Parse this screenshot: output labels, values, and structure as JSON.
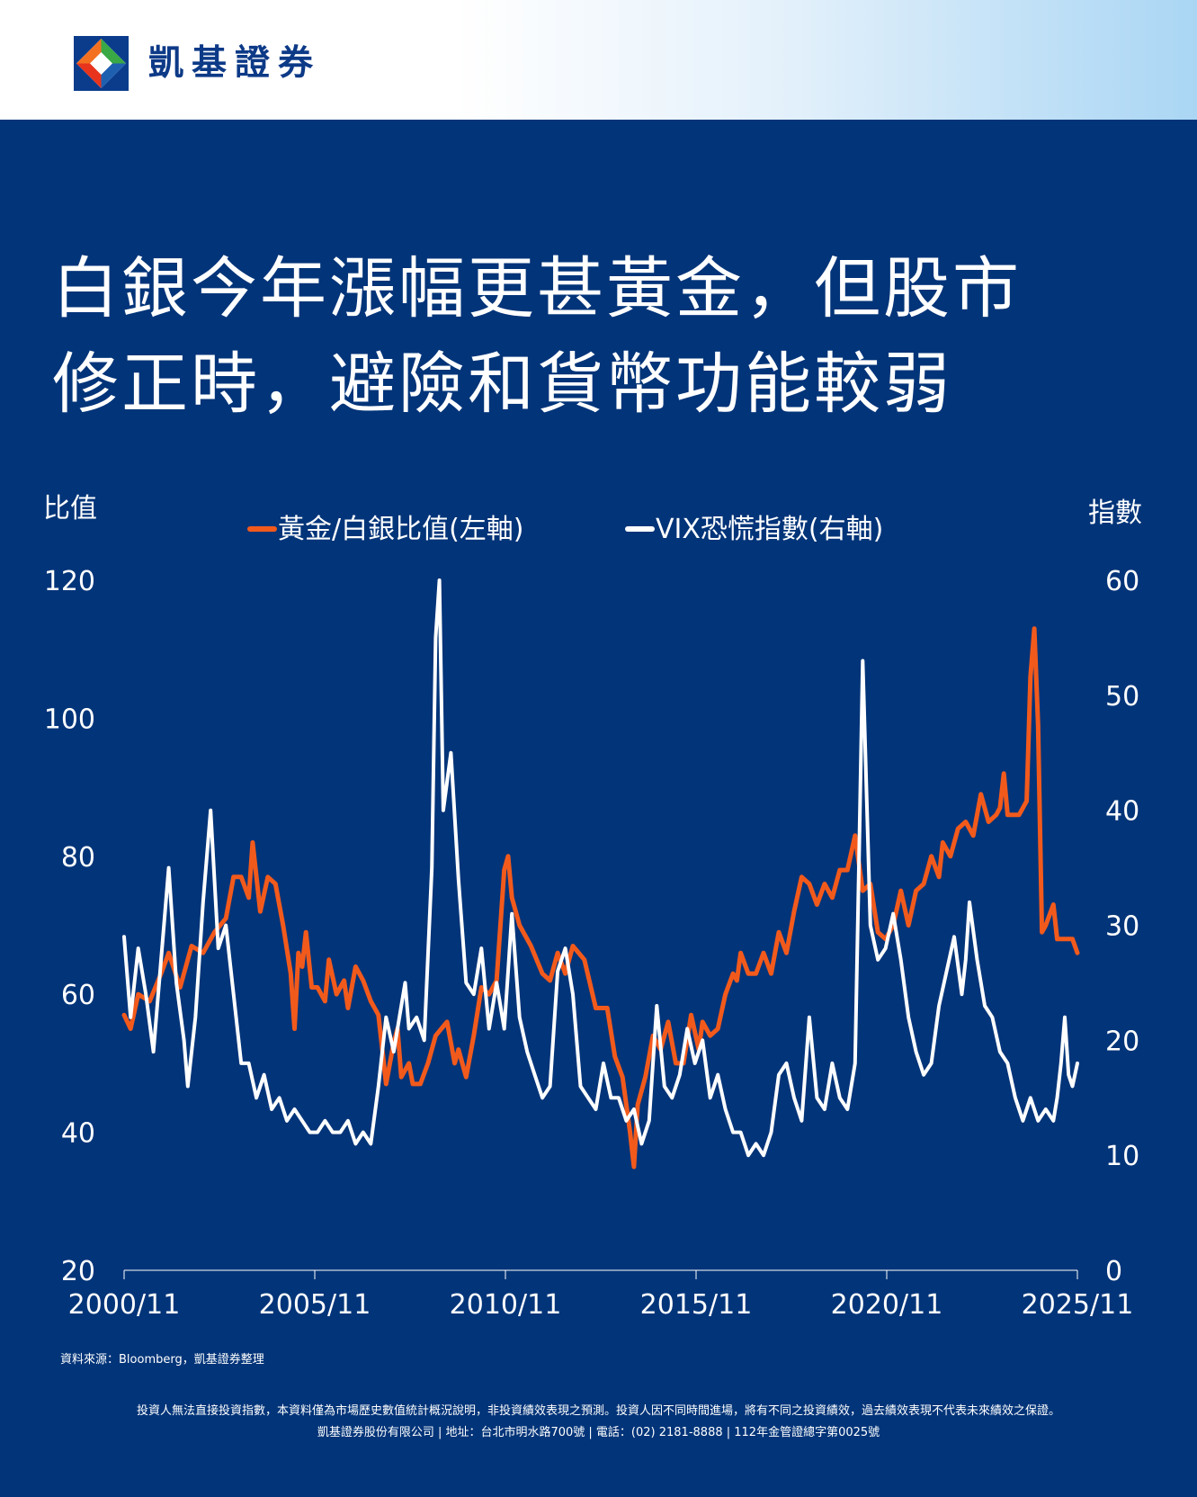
{
  "brand": {
    "name": "凱基證券"
  },
  "title": {
    "line1": "白銀今年漲幅更甚黃金，但股市",
    "line2": "修正時，避險和貨幣功能較弱"
  },
  "chart_data": {
    "type": "line",
    "left_axis": {
      "label": "比值",
      "min": 20,
      "max": 120,
      "ticks": [
        20,
        40,
        60,
        80,
        100,
        120
      ]
    },
    "right_axis": {
      "label": "指數",
      "min": 0,
      "max": 60,
      "ticks": [
        0,
        10,
        20,
        30,
        40,
        50,
        60
      ]
    },
    "x_axis": {
      "min": 2000.83,
      "max": 2025.83,
      "tick_labels": [
        "2000/11",
        "2005/11",
        "2010/11",
        "2015/11",
        "2020/11",
        "2025/11"
      ],
      "tick_values": [
        2000.83,
        2005.83,
        2010.83,
        2015.83,
        2020.83,
        2025.83
      ]
    },
    "grid": false,
    "legend_position": "top",
    "series": [
      {
        "name": "黃金/白銀比值(左軸)",
        "axis": "left",
        "color": "#f25a1c",
        "points": [
          [
            2000.83,
            57
          ],
          [
            2001.0,
            55
          ],
          [
            2001.2,
            60
          ],
          [
            2001.5,
            59
          ],
          [
            2001.8,
            63
          ],
          [
            2002.0,
            66
          ],
          [
            2002.3,
            61
          ],
          [
            2002.6,
            67
          ],
          [
            2002.9,
            66
          ],
          [
            2003.2,
            69
          ],
          [
            2003.5,
            71
          ],
          [
            2003.7,
            77
          ],
          [
            2003.9,
            77
          ],
          [
            2004.1,
            74
          ],
          [
            2004.2,
            82
          ],
          [
            2004.4,
            72
          ],
          [
            2004.6,
            77
          ],
          [
            2004.8,
            76
          ],
          [
            2005.0,
            70
          ],
          [
            2005.2,
            63
          ],
          [
            2005.3,
            55
          ],
          [
            2005.4,
            66
          ],
          [
            2005.5,
            64
          ],
          [
            2005.6,
            69
          ],
          [
            2005.75,
            61
          ],
          [
            2005.9,
            61
          ],
          [
            2006.1,
            59
          ],
          [
            2006.2,
            65
          ],
          [
            2006.4,
            60
          ],
          [
            2006.6,
            62
          ],
          [
            2006.7,
            58
          ],
          [
            2006.9,
            64
          ],
          [
            2007.1,
            62
          ],
          [
            2007.3,
            59
          ],
          [
            2007.5,
            57
          ],
          [
            2007.7,
            47
          ],
          [
            2007.9,
            53
          ],
          [
            2008.0,
            55
          ],
          [
            2008.1,
            48
          ],
          [
            2008.3,
            50
          ],
          [
            2008.4,
            47
          ],
          [
            2008.6,
            47
          ],
          [
            2008.8,
            50
          ],
          [
            2009.0,
            54
          ],
          [
            2009.3,
            56
          ],
          [
            2009.5,
            50
          ],
          [
            2009.6,
            52
          ],
          [
            2009.8,
            48
          ],
          [
            2010.0,
            54
          ],
          [
            2010.2,
            61
          ],
          [
            2010.4,
            60
          ],
          [
            2010.6,
            62
          ],
          [
            2010.8,
            78
          ],
          [
            2010.9,
            80
          ],
          [
            2011.0,
            74
          ],
          [
            2011.2,
            70
          ],
          [
            2011.5,
            67
          ],
          [
            2011.8,
            63
          ],
          [
            2012.0,
            62
          ],
          [
            2012.2,
            66
          ],
          [
            2012.4,
            63
          ],
          [
            2012.6,
            67
          ],
          [
            2012.9,
            65
          ],
          [
            2013.2,
            58
          ],
          [
            2013.5,
            58
          ],
          [
            2013.7,
            51
          ],
          [
            2013.9,
            48
          ],
          [
            2014.1,
            40
          ],
          [
            2014.2,
            35
          ],
          [
            2014.3,
            44
          ],
          [
            2014.5,
            48
          ],
          [
            2014.7,
            54
          ],
          [
            2014.9,
            52
          ],
          [
            2015.1,
            56
          ],
          [
            2015.3,
            50
          ],
          [
            2015.5,
            50
          ],
          [
            2015.7,
            57
          ],
          [
            2015.9,
            52
          ],
          [
            2016.0,
            56
          ],
          [
            2016.2,
            54
          ],
          [
            2016.4,
            55
          ],
          [
            2016.6,
            60
          ],
          [
            2016.8,
            63
          ],
          [
            2016.9,
            62
          ],
          [
            2017.0,
            66
          ],
          [
            2017.2,
            63
          ],
          [
            2017.4,
            63
          ],
          [
            2017.6,
            66
          ],
          [
            2017.8,
            63
          ],
          [
            2018.0,
            69
          ],
          [
            2018.2,
            66
          ],
          [
            2018.4,
            72
          ],
          [
            2018.6,
            77
          ],
          [
            2018.8,
            76
          ],
          [
            2019.0,
            73
          ],
          [
            2019.2,
            76
          ],
          [
            2019.4,
            74
          ],
          [
            2019.6,
            78
          ],
          [
            2019.8,
            78
          ],
          [
            2020.0,
            83
          ],
          [
            2020.2,
            75
          ],
          [
            2020.4,
            76
          ],
          [
            2020.6,
            69
          ],
          [
            2020.8,
            68
          ],
          [
            2021.0,
            70
          ],
          [
            2021.2,
            75
          ],
          [
            2021.4,
            70
          ],
          [
            2021.6,
            75
          ],
          [
            2021.8,
            76
          ],
          [
            2022.0,
            80
          ],
          [
            2022.2,
            77
          ],
          [
            2022.3,
            82
          ],
          [
            2022.5,
            80
          ],
          [
            2022.7,
            84
          ],
          [
            2022.9,
            85
          ],
          [
            2023.1,
            83
          ],
          [
            2023.3,
            89
          ],
          [
            2023.5,
            85
          ],
          [
            2023.7,
            86
          ],
          [
            2023.8,
            87
          ],
          [
            2023.9,
            92
          ],
          [
            2024.0,
            86
          ],
          [
            2024.1,
            86
          ],
          [
            2024.3,
            86
          ],
          [
            2024.5,
            88
          ],
          [
            2024.6,
            106
          ],
          [
            2024.7,
            113
          ],
          [
            2024.8,
            99
          ],
          [
            2024.9,
            69
          ],
          [
            2025.0,
            70
          ],
          [
            2025.2,
            73
          ],
          [
            2025.3,
            68
          ],
          [
            2025.5,
            68
          ],
          [
            2025.7,
            68
          ],
          [
            2025.83,
            66
          ]
        ]
      },
      {
        "name": "VIX恐慌指數(右軸)",
        "axis": "right",
        "color": "#ffffff",
        "points": [
          [
            2000.83,
            29
          ],
          [
            2001.0,
            22
          ],
          [
            2001.2,
            28
          ],
          [
            2001.4,
            24
          ],
          [
            2001.6,
            19
          ],
          [
            2001.8,
            27
          ],
          [
            2002.0,
            35
          ],
          [
            2002.2,
            25
          ],
          [
            2002.4,
            20
          ],
          [
            2002.5,
            16
          ],
          [
            2002.7,
            22
          ],
          [
            2002.9,
            32
          ],
          [
            2003.1,
            40
          ],
          [
            2003.3,
            28
          ],
          [
            2003.5,
            30
          ],
          [
            2003.7,
            24
          ],
          [
            2003.9,
            18
          ],
          [
            2004.1,
            18
          ],
          [
            2004.3,
            15
          ],
          [
            2004.5,
            17
          ],
          [
            2004.7,
            14
          ],
          [
            2004.9,
            15
          ],
          [
            2005.1,
            13
          ],
          [
            2005.3,
            14
          ],
          [
            2005.5,
            13
          ],
          [
            2005.7,
            12
          ],
          [
            2005.9,
            12
          ],
          [
            2006.1,
            13
          ],
          [
            2006.3,
            12
          ],
          [
            2006.5,
            12
          ],
          [
            2006.7,
            13
          ],
          [
            2006.9,
            11
          ],
          [
            2007.1,
            12
          ],
          [
            2007.3,
            11
          ],
          [
            2007.5,
            16
          ],
          [
            2007.7,
            22
          ],
          [
            2007.9,
            19
          ],
          [
            2008.0,
            21
          ],
          [
            2008.2,
            25
          ],
          [
            2008.3,
            21
          ],
          [
            2008.5,
            22
          ],
          [
            2008.7,
            20
          ],
          [
            2008.9,
            35
          ],
          [
            2009.0,
            55
          ],
          [
            2009.1,
            60
          ],
          [
            2009.2,
            40
          ],
          [
            2009.4,
            45
          ],
          [
            2009.6,
            34
          ],
          [
            2009.8,
            25
          ],
          [
            2010.0,
            24
          ],
          [
            2010.2,
            28
          ],
          [
            2010.4,
            21
          ],
          [
            2010.6,
            25
          ],
          [
            2010.8,
            21
          ],
          [
            2010.9,
            26
          ],
          [
            2011.0,
            31
          ],
          [
            2011.2,
            22
          ],
          [
            2011.4,
            19
          ],
          [
            2011.6,
            17
          ],
          [
            2011.8,
            15
          ],
          [
            2012.0,
            16
          ],
          [
            2012.2,
            26
          ],
          [
            2012.4,
            28
          ],
          [
            2012.6,
            24
          ],
          [
            2012.8,
            16
          ],
          [
            2013.0,
            15
          ],
          [
            2013.2,
            14
          ],
          [
            2013.4,
            18
          ],
          [
            2013.6,
            15
          ],
          [
            2013.8,
            15
          ],
          [
            2014.0,
            13
          ],
          [
            2014.2,
            14
          ],
          [
            2014.4,
            11
          ],
          [
            2014.6,
            13
          ],
          [
            2014.8,
            23
          ],
          [
            2015.0,
            16
          ],
          [
            2015.2,
            15
          ],
          [
            2015.4,
            17
          ],
          [
            2015.6,
            21
          ],
          [
            2015.8,
            18
          ],
          [
            2016.0,
            20
          ],
          [
            2016.2,
            15
          ],
          [
            2016.4,
            17
          ],
          [
            2016.6,
            14
          ],
          [
            2016.8,
            12
          ],
          [
            2017.0,
            12
          ],
          [
            2017.2,
            10
          ],
          [
            2017.4,
            11
          ],
          [
            2017.6,
            10
          ],
          [
            2017.8,
            12
          ],
          [
            2018.0,
            17
          ],
          [
            2018.2,
            18
          ],
          [
            2018.4,
            15
          ],
          [
            2018.6,
            13
          ],
          [
            2018.8,
            22
          ],
          [
            2019.0,
            15
          ],
          [
            2019.2,
            14
          ],
          [
            2019.4,
            18
          ],
          [
            2019.6,
            15
          ],
          [
            2019.8,
            14
          ],
          [
            2020.0,
            18
          ],
          [
            2020.1,
            35
          ],
          [
            2020.2,
            53
          ],
          [
            2020.4,
            30
          ],
          [
            2020.6,
            27
          ],
          [
            2020.8,
            28
          ],
          [
            2021.0,
            31
          ],
          [
            2021.2,
            27
          ],
          [
            2021.4,
            22
          ],
          [
            2021.6,
            19
          ],
          [
            2021.8,
            17
          ],
          [
            2022.0,
            18
          ],
          [
            2022.2,
            23
          ],
          [
            2022.4,
            26
          ],
          [
            2022.6,
            29
          ],
          [
            2022.8,
            24
          ],
          [
            2022.9,
            27
          ],
          [
            2023.0,
            32
          ],
          [
            2023.2,
            27
          ],
          [
            2023.4,
            23
          ],
          [
            2023.6,
            22
          ],
          [
            2023.8,
            19
          ],
          [
            2024.0,
            18
          ],
          [
            2024.2,
            15
          ],
          [
            2024.4,
            13
          ],
          [
            2024.6,
            15
          ],
          [
            2024.8,
            13
          ],
          [
            2025.0,
            14
          ],
          [
            2025.2,
            13
          ],
          [
            2025.3,
            15
          ],
          [
            2025.4,
            18
          ],
          [
            2025.5,
            22
          ],
          [
            2025.6,
            17
          ],
          [
            2025.7,
            16
          ],
          [
            2025.83,
            18
          ]
        ]
      }
    ]
  },
  "footer": {
    "source": "資料來源：Bloomberg，凱基證券整理",
    "disclaimer": "投資人無法直接投資指數，本資料僅為市場歷史數值統計概況說明，非投資績效表現之預測。投資人因不同時間進場，將有不同之投資績效，過去績效表現不代表未來績效之保證。",
    "company": "凱基證券股份有限公司 | 地址：台北市明水路700號 | 電話：(02) 2181-8888 | 112年金管證總字第0025號"
  }
}
